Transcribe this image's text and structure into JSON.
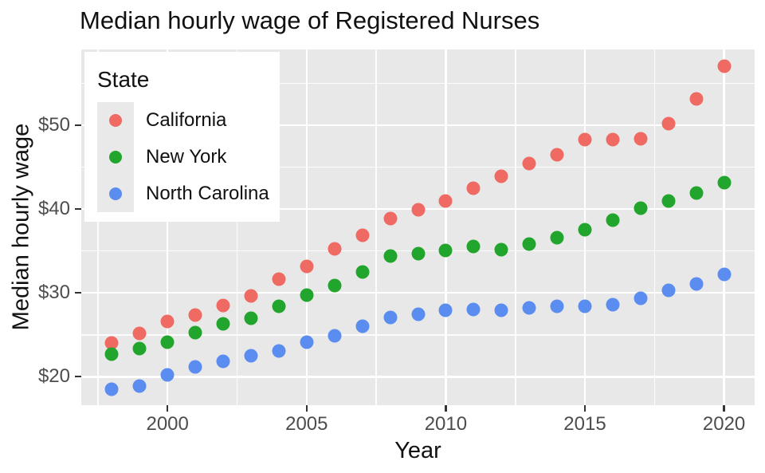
{
  "title": "Median hourly wage of Registered Nurses",
  "axes": {
    "x_title": "Year",
    "y_title": "Median hourly wage"
  },
  "legend": {
    "title": "State"
  },
  "colors": {
    "california": "#ee6a62",
    "new_york": "#21a52c",
    "north_carolina": "#5b8cf0",
    "panel_background": "#e8e8e8",
    "gridline": "#ffffff",
    "tick_text": "#4d4d4d",
    "title_text": "#111111"
  },
  "chart_data": {
    "type": "scatter",
    "title": "Median hourly wage of Registered Nurses",
    "xlabel": "Year",
    "ylabel": "Median hourly wage",
    "legend_title": "State",
    "legend_position": "inside-top-left",
    "grid": true,
    "xlim": [
      1996.9,
      2021.1
    ],
    "ylim": [
      16.6,
      59.05
    ],
    "x": [
      1998,
      1999,
      2000,
      2001,
      2002,
      2003,
      2004,
      2005,
      2006,
      2007,
      2008,
      2009,
      2010,
      2011,
      2012,
      2013,
      2014,
      2015,
      2016,
      2017,
      2018,
      2019,
      2020
    ],
    "series": [
      {
        "name": "California",
        "color": "#ee6a62",
        "values": [
          24.0,
          25.2,
          26.6,
          27.4,
          28.5,
          29.6,
          31.6,
          33.2,
          35.3,
          36.9,
          38.9,
          39.9,
          41.0,
          42.5,
          43.9,
          45.4,
          46.5,
          48.3,
          48.3,
          48.4,
          50.2,
          53.2,
          57.1
        ]
      },
      {
        "name": "New York",
        "color": "#21a52c",
        "values": [
          22.7,
          23.4,
          24.1,
          25.3,
          26.3,
          27.0,
          28.4,
          29.7,
          30.9,
          32.5,
          34.4,
          34.7,
          35.1,
          35.5,
          35.2,
          35.8,
          36.6,
          37.5,
          38.7,
          40.1,
          41.0,
          41.9,
          43.2
        ]
      },
      {
        "name": "North Carolina",
        "color": "#5b8cf0",
        "values": [
          18.5,
          18.9,
          20.2,
          21.2,
          21.8,
          22.5,
          23.1,
          24.1,
          24.9,
          26.0,
          27.1,
          27.5,
          27.9,
          28.0,
          27.9,
          28.2,
          28.4,
          28.4,
          28.6,
          29.4,
          30.3,
          31.1,
          32.2
        ]
      }
    ],
    "x_ticks": [
      {
        "value": 2000,
        "label": "2000"
      },
      {
        "value": 2005,
        "label": "2005"
      },
      {
        "value": 2010,
        "label": "2010"
      },
      {
        "value": 2015,
        "label": "2015"
      },
      {
        "value": 2020,
        "label": "2020"
      }
    ],
    "y_ticks": [
      {
        "value": 20,
        "label": "$20"
      },
      {
        "value": 30,
        "label": "$30"
      },
      {
        "value": 40,
        "label": "$40"
      },
      {
        "value": 50,
        "label": "$50"
      }
    ],
    "x_minor_ticks": [
      1997.5,
      2002.5,
      2007.5,
      2012.5,
      2017.5
    ],
    "y_minor_ticks": [
      25,
      35,
      45,
      55
    ]
  }
}
